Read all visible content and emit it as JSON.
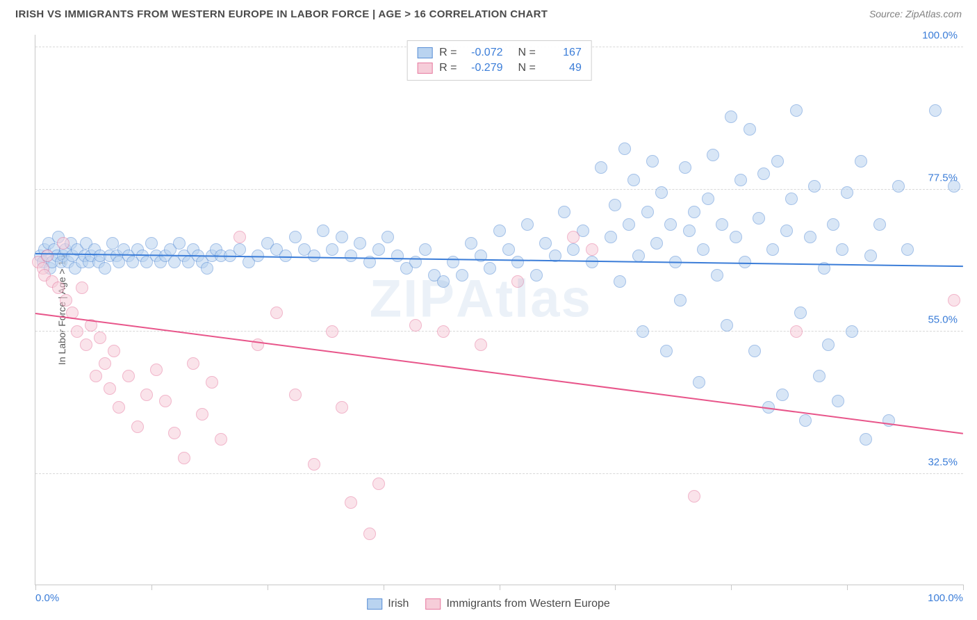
{
  "title": "IRISH VS IMMIGRANTS FROM WESTERN EUROPE IN LABOR FORCE | AGE > 16 CORRELATION CHART",
  "source": "Source: ZipAtlas.com",
  "ylabel": "In Labor Force | Age > 16",
  "watermark_a": "ZIP",
  "watermark_b": "Atlas",
  "chart": {
    "type": "scatter",
    "background_color": "#ffffff",
    "grid_color": "#d8d8d8",
    "axis_color": "#c8c8c8",
    "xlim": [
      0,
      100
    ],
    "ylim": [
      15,
      102
    ],
    "xticks": [
      0,
      12.5,
      25,
      37.5,
      50,
      62.5,
      75,
      87.5,
      100
    ],
    "xtick_labels": {
      "0": "0.0%",
      "100": "100.0%"
    },
    "yticks": [
      32.5,
      55.0,
      77.5,
      100.0
    ],
    "ytick_labels": [
      "32.5%",
      "55.0%",
      "77.5%",
      "100.0%"
    ],
    "marker_radius": 9,
    "marker_opacity": 0.55,
    "label_fontsize": 15,
    "label_color": "#3b7dd8",
    "series": [
      {
        "name": "Irish",
        "fill": "#b9d3f0",
        "stroke": "#5a8fd6",
        "line_color": "#3b7dd8",
        "R": "-0.072",
        "N": "167",
        "trend": {
          "y0": 67.5,
          "y1": 65.5
        },
        "points": [
          [
            0.5,
            67
          ],
          [
            0.8,
            66
          ],
          [
            1.0,
            68
          ],
          [
            1.3,
            67
          ],
          [
            1.4,
            69
          ],
          [
            1.6,
            65
          ],
          [
            1.8,
            66
          ],
          [
            2.0,
            68
          ],
          [
            2.3,
            67
          ],
          [
            2.5,
            70
          ],
          [
            2.8,
            66
          ],
          [
            3.0,
            67
          ],
          [
            3.2,
            68
          ],
          [
            3.5,
            66
          ],
          [
            3.8,
            69
          ],
          [
            4.0,
            67
          ],
          [
            4.3,
            65
          ],
          [
            4.5,
            68
          ],
          [
            5.0,
            66
          ],
          [
            5.3,
            67
          ],
          [
            5.5,
            69
          ],
          [
            5.8,
            66
          ],
          [
            6.0,
            67
          ],
          [
            6.4,
            68
          ],
          [
            6.8,
            66
          ],
          [
            7.0,
            67
          ],
          [
            7.5,
            65
          ],
          [
            8.0,
            67
          ],
          [
            8.3,
            69
          ],
          [
            8.8,
            67
          ],
          [
            9.0,
            66
          ],
          [
            9.5,
            68
          ],
          [
            10.0,
            67
          ],
          [
            10.5,
            66
          ],
          [
            11.0,
            68
          ],
          [
            11.5,
            67
          ],
          [
            12.0,
            66
          ],
          [
            12.5,
            69
          ],
          [
            13.0,
            67
          ],
          [
            13.5,
            66
          ],
          [
            14.0,
            67
          ],
          [
            14.5,
            68
          ],
          [
            15.0,
            66
          ],
          [
            15.5,
            69
          ],
          [
            16.0,
            67
          ],
          [
            16.5,
            66
          ],
          [
            17.0,
            68
          ],
          [
            17.5,
            67
          ],
          [
            18.0,
            66
          ],
          [
            18.5,
            65
          ],
          [
            19.0,
            67
          ],
          [
            19.5,
            68
          ],
          [
            20.0,
            67
          ],
          [
            21.0,
            67
          ],
          [
            22.0,
            68
          ],
          [
            23.0,
            66
          ],
          [
            24.0,
            67
          ],
          [
            25.0,
            69
          ],
          [
            26.0,
            68
          ],
          [
            27.0,
            67
          ],
          [
            28.0,
            70
          ],
          [
            29.0,
            68
          ],
          [
            30.0,
            67
          ],
          [
            31.0,
            71
          ],
          [
            32.0,
            68
          ],
          [
            33.0,
            70
          ],
          [
            34.0,
            67
          ],
          [
            35.0,
            69
          ],
          [
            36.0,
            66
          ],
          [
            37.0,
            68
          ],
          [
            38.0,
            70
          ],
          [
            39.0,
            67
          ],
          [
            40.0,
            65
          ],
          [
            41.0,
            66
          ],
          [
            42.0,
            68
          ],
          [
            43.0,
            64
          ],
          [
            44.0,
            63
          ],
          [
            45.0,
            66
          ],
          [
            46.0,
            64
          ],
          [
            47.0,
            69
          ],
          [
            48.0,
            67
          ],
          [
            49.0,
            65
          ],
          [
            50.0,
            71
          ],
          [
            51.0,
            68
          ],
          [
            52.0,
            66
          ],
          [
            53.0,
            72
          ],
          [
            54.0,
            64
          ],
          [
            55.0,
            69
          ],
          [
            56.0,
            67
          ],
          [
            57.0,
            74
          ],
          [
            58.0,
            68
          ],
          [
            59.0,
            71
          ],
          [
            60.0,
            66
          ],
          [
            61.0,
            81
          ],
          [
            62.0,
            70
          ],
          [
            62.5,
            75
          ],
          [
            63.0,
            63
          ],
          [
            63.5,
            84
          ],
          [
            64.0,
            72
          ],
          [
            64.5,
            79
          ],
          [
            65.0,
            67
          ],
          [
            65.5,
            55
          ],
          [
            66.0,
            74
          ],
          [
            66.5,
            82
          ],
          [
            67.0,
            69
          ],
          [
            67.5,
            77
          ],
          [
            68.0,
            52
          ],
          [
            68.5,
            72
          ],
          [
            69.0,
            66
          ],
          [
            69.5,
            60
          ],
          [
            70.0,
            81
          ],
          [
            70.5,
            71
          ],
          [
            71.0,
            74
          ],
          [
            71.5,
            47
          ],
          [
            72.0,
            68
          ],
          [
            72.5,
            76
          ],
          [
            73.0,
            83
          ],
          [
            73.5,
            64
          ],
          [
            74.0,
            72
          ],
          [
            74.5,
            56
          ],
          [
            75.0,
            89
          ],
          [
            75.5,
            70
          ],
          [
            76.0,
            79
          ],
          [
            76.5,
            66
          ],
          [
            77.0,
            87
          ],
          [
            77.5,
            52
          ],
          [
            78.0,
            73
          ],
          [
            78.5,
            80
          ],
          [
            79.0,
            43
          ],
          [
            79.5,
            68
          ],
          [
            80.0,
            82
          ],
          [
            80.5,
            45
          ],
          [
            81.0,
            71
          ],
          [
            81.5,
            76
          ],
          [
            82.0,
            90
          ],
          [
            82.5,
            58
          ],
          [
            83.0,
            41
          ],
          [
            83.5,
            70
          ],
          [
            84.0,
            78
          ],
          [
            84.5,
            48
          ],
          [
            85.0,
            65
          ],
          [
            85.5,
            53
          ],
          [
            86.0,
            72
          ],
          [
            86.5,
            44
          ],
          [
            87.0,
            68
          ],
          [
            87.5,
            77
          ],
          [
            88.0,
            55
          ],
          [
            89.0,
            82
          ],
          [
            89.5,
            38
          ],
          [
            90.0,
            67
          ],
          [
            91.0,
            72
          ],
          [
            92.0,
            41
          ],
          [
            93.0,
            78
          ],
          [
            94.0,
            68
          ],
          [
            97.0,
            90
          ],
          [
            99.0,
            78
          ]
        ]
      },
      {
        "name": "Immigrants from Western Europe",
        "fill": "#f6cdd9",
        "stroke": "#e77aa0",
        "line_color": "#e8558a",
        "R": "-0.279",
        "N": "49",
        "trend": {
          "y0": 58,
          "y1": 39
        },
        "points": [
          [
            0.3,
            66
          ],
          [
            0.8,
            65
          ],
          [
            1.0,
            64
          ],
          [
            1.3,
            67
          ],
          [
            1.8,
            63
          ],
          [
            2.5,
            62
          ],
          [
            3.0,
            69
          ],
          [
            3.3,
            60
          ],
          [
            4.0,
            58
          ],
          [
            4.5,
            55
          ],
          [
            5.0,
            62
          ],
          [
            5.5,
            53
          ],
          [
            6.0,
            56
          ],
          [
            6.5,
            48
          ],
          [
            7.0,
            54
          ],
          [
            7.5,
            50
          ],
          [
            8.0,
            46
          ],
          [
            8.5,
            52
          ],
          [
            9.0,
            43
          ],
          [
            10.0,
            48
          ],
          [
            11.0,
            40
          ],
          [
            12.0,
            45
          ],
          [
            13.0,
            49
          ],
          [
            14.0,
            44
          ],
          [
            15.0,
            39
          ],
          [
            16.0,
            35
          ],
          [
            17.0,
            50
          ],
          [
            18.0,
            42
          ],
          [
            19.0,
            47
          ],
          [
            20.0,
            38
          ],
          [
            22.0,
            70
          ],
          [
            24.0,
            53
          ],
          [
            26.0,
            58
          ],
          [
            28.0,
            45
          ],
          [
            30.0,
            34
          ],
          [
            32.0,
            55
          ],
          [
            33.0,
            43
          ],
          [
            34.0,
            28
          ],
          [
            36.0,
            23
          ],
          [
            37.0,
            31
          ],
          [
            41.0,
            56
          ],
          [
            44.0,
            55
          ],
          [
            48.0,
            53
          ],
          [
            52.0,
            63
          ],
          [
            58.0,
            70
          ],
          [
            60.0,
            68
          ],
          [
            71.0,
            29
          ],
          [
            82.0,
            55
          ],
          [
            99.0,
            60
          ]
        ]
      }
    ]
  },
  "bottom_legend": [
    {
      "label": "Irish",
      "fill": "#b9d3f0",
      "stroke": "#5a8fd6"
    },
    {
      "label": "Immigrants from Western Europe",
      "fill": "#f6cdd9",
      "stroke": "#e77aa0"
    }
  ],
  "legend_box_labels": {
    "R": "R =",
    "N": "N ="
  }
}
